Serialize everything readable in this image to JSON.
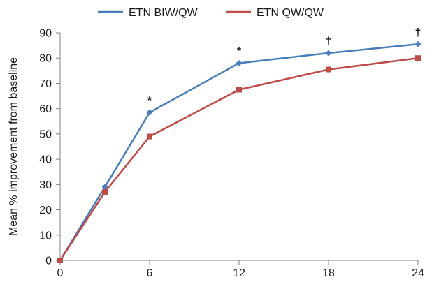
{
  "chart_data": {
    "type": "line",
    "title": "",
    "xlabel": "",
    "ylabel": "Mean % improvement from baseline",
    "x": [
      0,
      3,
      6,
      12,
      18,
      24
    ],
    "xticks": [
      "0",
      "6",
      "12",
      "18",
      "24"
    ],
    "xtick_values": [
      0,
      6,
      12,
      18,
      24
    ],
    "xlim": [
      0,
      24
    ],
    "yticks": [
      "0",
      "10",
      "20",
      "30",
      "40",
      "50",
      "60",
      "70",
      "80",
      "90"
    ],
    "ylim": [
      0,
      90
    ],
    "grid": false,
    "legend_position": "top-center",
    "series": [
      {
        "name": "ETN BIW/QW",
        "color": "#4a7ebb",
        "marker": "diamond",
        "values": [
          0,
          29,
          58.5,
          78,
          82,
          85.5
        ]
      },
      {
        "name": "ETN QW/QW",
        "color": "#be4b48",
        "marker": "square",
        "values": [
          0,
          27,
          49,
          67.5,
          75.5,
          80
        ]
      }
    ],
    "annotations": [
      {
        "x": 6,
        "y": 58.5,
        "text": "*"
      },
      {
        "x": 12,
        "y": 78,
        "text": "*"
      },
      {
        "x": 18,
        "y": 82,
        "text": "†"
      },
      {
        "x": 24,
        "y": 85.5,
        "text": "†"
      }
    ]
  }
}
